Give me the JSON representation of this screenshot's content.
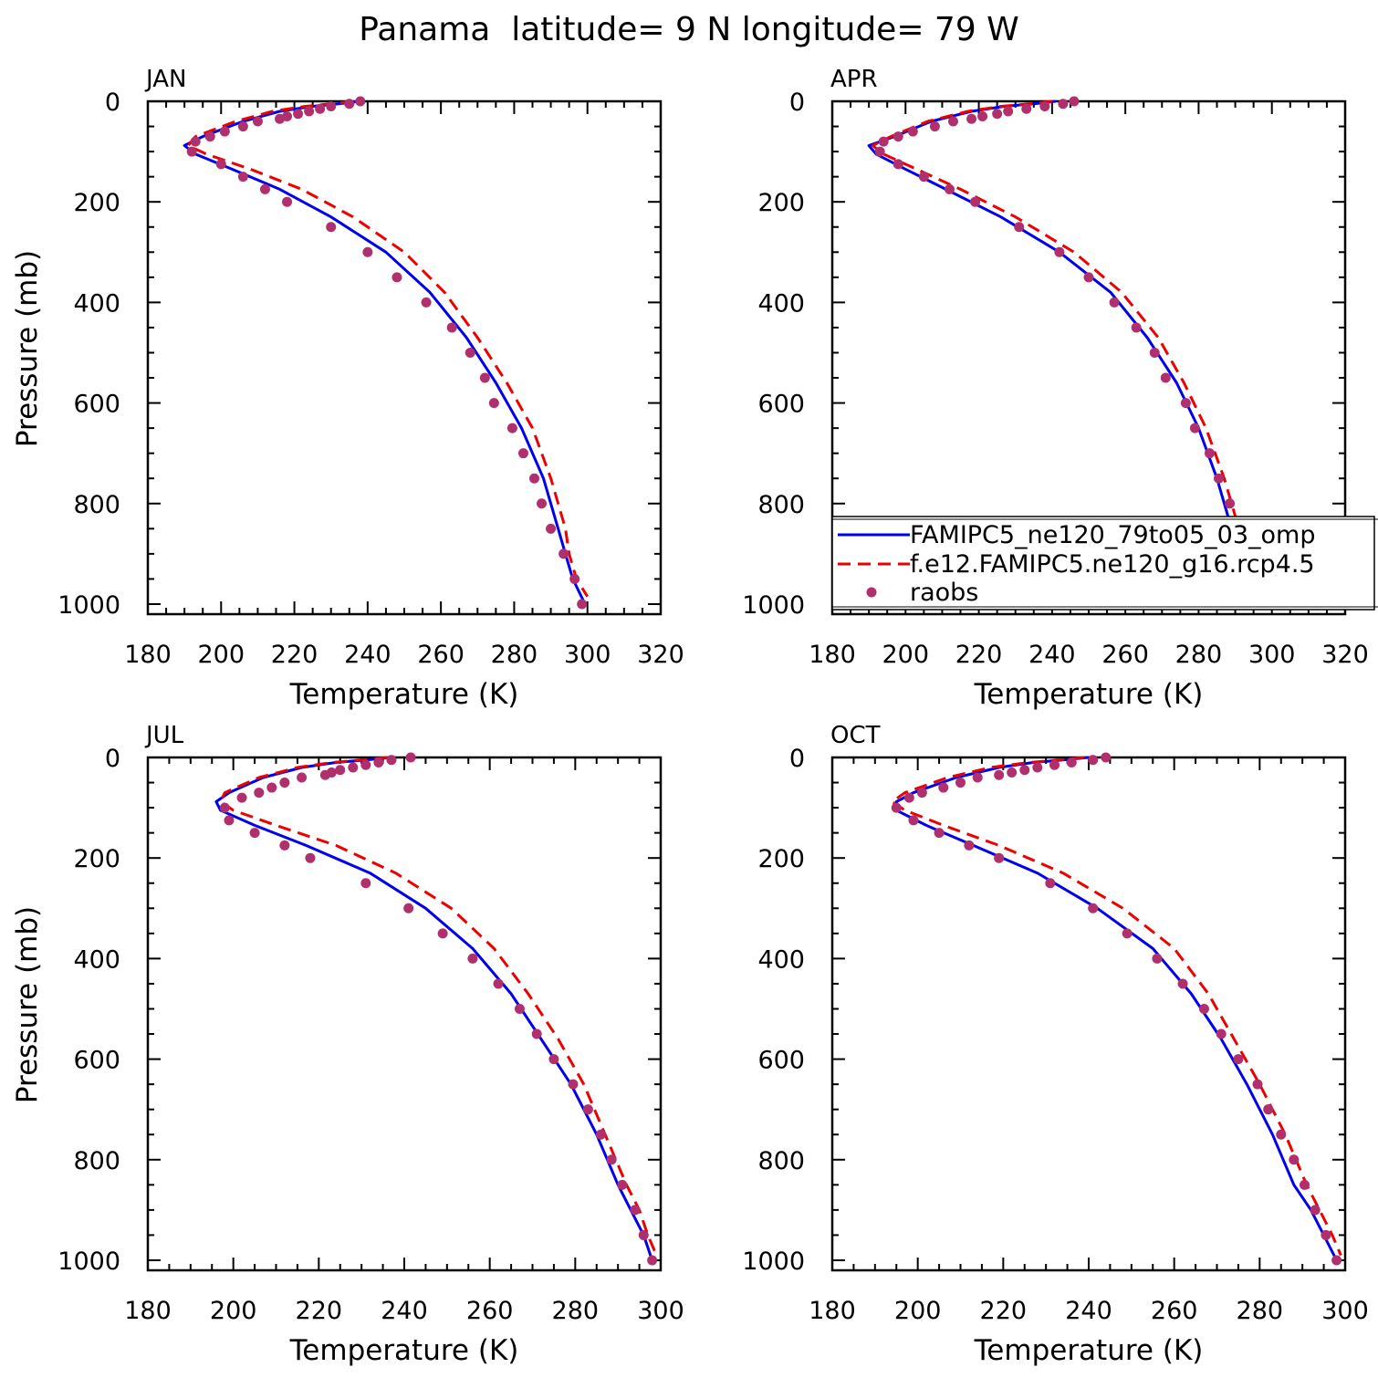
{
  "figure": {
    "title": "Panama  latitude= 9 N longitude= 79 W"
  },
  "colors": {
    "model_1": "#0000ee",
    "model_2": "#ee0000",
    "raobs": "#b0306e",
    "axes": "#000000"
  },
  "legend": {
    "panel": 1,
    "entries": [
      {
        "label": "FAMIPC5_ne120_79to05_03_omp",
        "style": "solid",
        "color": "#0000ee"
      },
      {
        "label": "f.e12.FAMIPC5.ne120_g16.rcp4.5",
        "style": "dashed",
        "color": "#ee0000"
      },
      {
        "label": "raobs",
        "style": "marker",
        "color": "#b0306e"
      }
    ]
  },
  "chart_data": [
    {
      "type": "line",
      "title": "JAN",
      "xlabel": "Temperature (K)",
      "ylabel": "Pressure (mb)",
      "xlim": [
        180,
        320
      ],
      "ylim": [
        1020,
        0
      ],
      "xticks": [
        180,
        200,
        220,
        240,
        260,
        280,
        300,
        320
      ],
      "yticks": [
        0,
        200,
        400,
        600,
        800,
        1000
      ],
      "series": [
        {
          "name": "FAMIPC5_ne120_79to05_03_omp",
          "style": "solid",
          "x": [
            238,
            232,
            225,
            216,
            206,
            195,
            190,
            193,
            203,
            216,
            230,
            245,
            257,
            267,
            275,
            282,
            288,
            292,
            294,
            296,
            299
          ],
          "y": [
            0,
            5,
            10,
            20,
            40,
            70,
            88,
            105,
            135,
            175,
            230,
            300,
            380,
            470,
            560,
            650,
            750,
            850,
            900,
            950,
            995
          ]
        },
        {
          "name": "f.e12.FAMIPC5.ne120_g16.rcp4.5",
          "style": "dashed",
          "x": [
            236,
            230,
            223,
            214,
            204,
            193,
            191,
            196,
            208,
            222,
            236,
            250,
            261,
            270,
            278,
            285,
            290,
            294,
            295,
            297,
            300
          ],
          "y": [
            0,
            5,
            10,
            20,
            40,
            70,
            88,
            105,
            135,
            175,
            230,
            300,
            380,
            470,
            560,
            650,
            750,
            850,
            900,
            950,
            985
          ]
        }
      ],
      "raobs": {
        "x": [
          238,
          235,
          230,
          227,
          224,
          221,
          218,
          216,
          210,
          206,
          201,
          197,
          193,
          192,
          200,
          206,
          212,
          218,
          230,
          240,
          248,
          256,
          263,
          268,
          272,
          274.5,
          279.5,
          282.5,
          285.5,
          287.5,
          290,
          293.5,
          296.5,
          298.5
        ],
        "y": [
          0,
          5,
          10,
          15,
          20,
          25,
          30,
          35,
          40,
          50,
          60,
          70,
          80,
          100,
          125,
          150,
          175,
          200,
          250,
          300,
          350,
          400,
          450,
          500,
          550,
          600,
          650,
          700,
          750,
          800,
          850,
          900,
          950,
          1000
        ]
      }
    },
    {
      "type": "line",
      "title": "APR",
      "xlabel": "Temperature (K)",
      "ylabel": "",
      "xlim": [
        180,
        320
      ],
      "ylim": [
        1020,
        0
      ],
      "xticks": [
        180,
        200,
        220,
        240,
        260,
        280,
        300,
        320
      ],
      "yticks": [
        0,
        200,
        400,
        600,
        800,
        1000
      ],
      "series": [
        {
          "name": "FAMIPC5_ne120_79to05_03_omp",
          "style": "solid",
          "x": [
            241,
            235,
            227,
            218,
            207,
            197,
            190,
            192,
            200,
            211,
            226,
            242,
            256,
            266,
            274,
            280,
            285,
            289,
            293,
            296,
            300
          ],
          "y": [
            0,
            5,
            10,
            20,
            40,
            70,
            88,
            105,
            135,
            175,
            230,
            300,
            380,
            470,
            560,
            650,
            750,
            850,
            900,
            950,
            1000
          ]
        },
        {
          "name": "f.e12.FAMIPC5.ne120_g16.rcp4.5",
          "style": "dashed",
          "x": [
            240,
            234,
            226,
            217,
            206,
            196,
            191,
            194,
            203,
            215,
            230,
            246,
            259,
            269,
            276,
            282,
            287,
            291,
            294,
            297,
            301
          ],
          "y": [
            0,
            5,
            10,
            20,
            40,
            70,
            88,
            105,
            135,
            175,
            230,
            300,
            380,
            470,
            560,
            650,
            750,
            850,
            900,
            950,
            995
          ]
        }
      ],
      "raobs": {
        "x": [
          246,
          243,
          238,
          233,
          228,
          225,
          221,
          218,
          213,
          208,
          202,
          198,
          194,
          193,
          198,
          205,
          212,
          219,
          231,
          242,
          250,
          257,
          263,
          268,
          271,
          276.5,
          279,
          283,
          285.5,
          288.5,
          291,
          294,
          297,
          300
        ],
        "y": [
          0,
          5,
          10,
          15,
          20,
          25,
          30,
          35,
          40,
          50,
          60,
          70,
          80,
          100,
          125,
          150,
          175,
          200,
          250,
          300,
          350,
          400,
          450,
          500,
          550,
          600,
          650,
          700,
          750,
          800,
          850,
          900,
          950,
          1000
        ]
      }
    },
    {
      "type": "line",
      "title": "JUL",
      "xlabel": "Temperature (K)",
      "ylabel": "Pressure (mb)",
      "xlim": [
        180,
        300
      ],
      "ylim": [
        1020,
        0
      ],
      "xticks": [
        180,
        200,
        220,
        240,
        260,
        280,
        300
      ],
      "yticks": [
        0,
        200,
        400,
        600,
        800,
        1000
      ],
      "series": [
        {
          "name": "FAMIPC5_ne120_79to05_03_omp",
          "style": "solid",
          "x": [
            237,
            231,
            224,
            216,
            207,
            199,
            196,
            197,
            205,
            217,
            232,
            245,
            256,
            265,
            272,
            279,
            285,
            290,
            293,
            296,
            298
          ],
          "y": [
            0,
            5,
            10,
            20,
            40,
            70,
            88,
            105,
            135,
            175,
            230,
            300,
            380,
            470,
            560,
            650,
            750,
            850,
            900,
            950,
            1000
          ]
        },
        {
          "name": "f.e12.FAMIPC5.ne120_g16.rcp4.5",
          "style": "dashed",
          "x": [
            236,
            230,
            223,
            215,
            206,
            198,
            197,
            200,
            210,
            224,
            238,
            251,
            261,
            269,
            276,
            282,
            287,
            292,
            295,
            297,
            299
          ],
          "y": [
            0,
            5,
            10,
            20,
            40,
            70,
            88,
            105,
            135,
            175,
            230,
            300,
            380,
            470,
            560,
            650,
            750,
            850,
            900,
            950,
            990
          ]
        }
      ],
      "raobs": {
        "x": [
          241.5,
          237,
          234,
          231,
          228,
          225,
          223,
          221.5,
          216,
          212,
          209,
          206,
          202,
          198,
          199,
          205,
          212,
          218,
          231,
          241,
          249,
          256,
          262,
          267,
          271,
          275,
          279.5,
          283,
          286,
          288.5,
          291,
          294,
          296,
          298
        ],
        "y": [
          0,
          5,
          10,
          15,
          20,
          25,
          30,
          35,
          40,
          50,
          60,
          70,
          80,
          100,
          125,
          150,
          175,
          200,
          250,
          300,
          350,
          400,
          450,
          500,
          550,
          600,
          650,
          700,
          750,
          800,
          850,
          900,
          950,
          1000
        ]
      }
    },
    {
      "type": "line",
      "title": "OCT",
      "xlabel": "Temperature (K)",
      "ylabel": "",
      "xlim": [
        180,
        300
      ],
      "ylim": [
        1020,
        0
      ],
      "xticks": [
        180,
        200,
        220,
        240,
        260,
        280,
        300
      ],
      "yticks": [
        0,
        200,
        400,
        600,
        800,
        1000
      ],
      "series": [
        {
          "name": "FAMIPC5_ne120_79to05_03_omp",
          "style": "solid",
          "x": [
            240,
            234,
            227,
            219,
            209,
            199,
            195,
            195,
            202,
            213,
            228,
            242,
            255,
            264,
            271,
            277,
            283,
            288,
            292,
            295,
            298
          ],
          "y": [
            0,
            5,
            10,
            20,
            40,
            70,
            88,
            105,
            135,
            175,
            230,
            300,
            380,
            470,
            560,
            650,
            750,
            850,
            900,
            950,
            1000
          ]
        },
        {
          "name": "f.e12.FAMIPC5.ne120_g16.rcp4.5",
          "style": "dashed",
          "x": [
            239,
            233,
            226,
            217,
            207,
            197,
            194,
            197,
            206,
            219,
            234,
            248,
            260,
            268,
            274,
            280,
            286,
            291,
            294,
            297,
            299
          ],
          "y": [
            0,
            5,
            10,
            20,
            40,
            70,
            88,
            105,
            135,
            175,
            230,
            300,
            380,
            470,
            560,
            650,
            750,
            850,
            900,
            950,
            990
          ]
        }
      ],
      "raobs": {
        "x": [
          244,
          241,
          236,
          232,
          228,
          225,
          222,
          219,
          214,
          210,
          206,
          201,
          198,
          195,
          199,
          205,
          212,
          219,
          231,
          241,
          249,
          256,
          262,
          267,
          271,
          275,
          279.5,
          282,
          285,
          288,
          290.5,
          293,
          295.5,
          298
        ],
        "y": [
          0,
          5,
          10,
          15,
          20,
          25,
          30,
          35,
          40,
          50,
          60,
          70,
          80,
          100,
          125,
          150,
          175,
          200,
          250,
          300,
          350,
          400,
          450,
          500,
          550,
          600,
          650,
          700,
          750,
          800,
          850,
          900,
          950,
          1000
        ]
      }
    }
  ]
}
